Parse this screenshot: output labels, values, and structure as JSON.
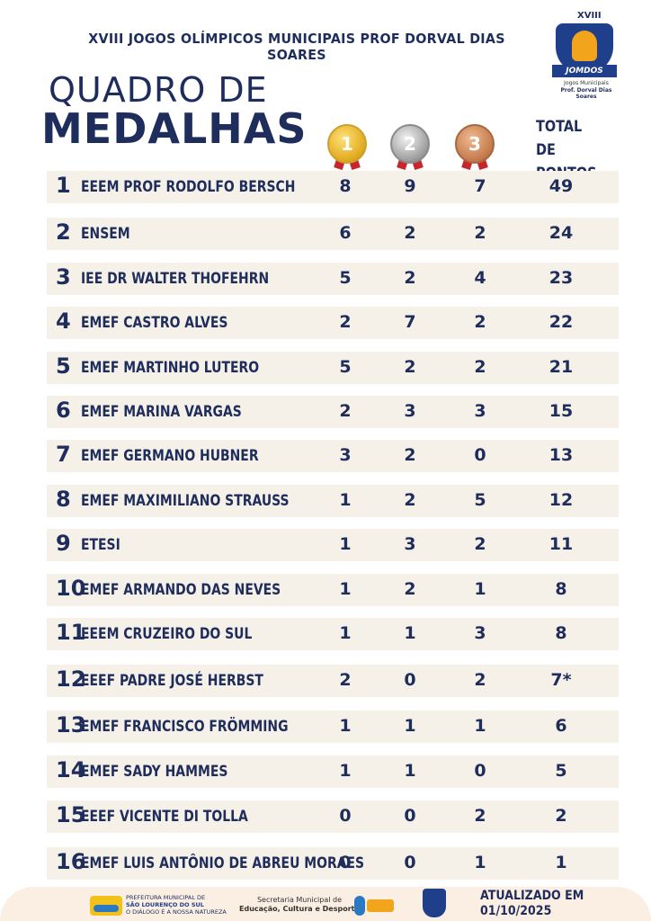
{
  "header": {
    "title": "XVIII JOGOS OLÍMPICOS MUNICIPAIS PROF DORVAL DIAS SOARES",
    "title_line1": "QUADRO DE",
    "title_line2": "MEDALHAS"
  },
  "logo": {
    "year": "XVIII",
    "banner": "JOMDOS",
    "sub1": "Jogos Municipais",
    "sub2": "Prof. Dorval Dias Soares"
  },
  "columns": {
    "gold": "1",
    "silver": "2",
    "bronze": "3",
    "total_line1": "TOTAL DE",
    "total_line2": "PONTOS"
  },
  "rows": [
    {
      "rank": "1",
      "school": "EEEM PROF RODOLFO BERSCH",
      "gold": "8",
      "silver": "9",
      "bronze": "7",
      "total": "49"
    },
    {
      "rank": "2",
      "school": "ENSEM",
      "gold": "6",
      "silver": "2",
      "bronze": "2",
      "total": "24"
    },
    {
      "rank": "3",
      "school": "IEE DR WALTER THOFEHRN",
      "gold": "5",
      "silver": "2",
      "bronze": "4",
      "total": "23"
    },
    {
      "rank": "4",
      "school": "EMEF CASTRO ALVES",
      "gold": "2",
      "silver": "7",
      "bronze": "2",
      "total": "22"
    },
    {
      "rank": "5",
      "school": "EMEF MARTINHO LUTERO",
      "gold": "5",
      "silver": "2",
      "bronze": "2",
      "total": "21"
    },
    {
      "rank": "6",
      "school": "EMEF MARINA VARGAS",
      "gold": "2",
      "silver": "3",
      "bronze": "3",
      "total": "15"
    },
    {
      "rank": "7",
      "school": "EMEF GERMANO HUBNER",
      "gold": "3",
      "silver": "2",
      "bronze": "0",
      "total": "13"
    },
    {
      "rank": "8",
      "school": "EMEF MAXIMILIANO STRAUSS",
      "gold": "1",
      "silver": "2",
      "bronze": "5",
      "total": "12"
    },
    {
      "rank": "9",
      "school": "ETESI",
      "gold": "1",
      "silver": "3",
      "bronze": "2",
      "total": "11"
    },
    {
      "rank": "10",
      "school": "EMEF ARMANDO DAS NEVES",
      "gold": "1",
      "silver": "2",
      "bronze": "1",
      "total": "8"
    },
    {
      "rank": "11",
      "school": "EEEM CRUZEIRO DO SUL",
      "gold": "1",
      "silver": "1",
      "bronze": "3",
      "total": "8"
    },
    {
      "rank": "12",
      "school": "EEEF PADRE JOSÉ HERBST",
      "gold": "2",
      "silver": "0",
      "bronze": "2",
      "total": "7*"
    },
    {
      "rank": "13",
      "school": "EMEF FRANCISCO FRÖMMING",
      "gold": "1",
      "silver": "1",
      "bronze": "1",
      "total": "6"
    },
    {
      "rank": "14",
      "school": "EMEF SADY HAMMES",
      "gold": "1",
      "silver": "1",
      "bronze": "0",
      "total": "5"
    },
    {
      "rank": "15",
      "school": "EEEF VICENTE DI TOLLA",
      "gold": "0",
      "silver": "0",
      "bronze": "2",
      "total": "2"
    },
    {
      "rank": "16",
      "school": "EMEF LUIS ANTÔNIO DE ABREU MORAES",
      "gold": "0",
      "silver": "0",
      "bronze": "1",
      "total": "1"
    }
  ],
  "footer": {
    "pref_line1": "PREFEITURA MUNICIPAL DE",
    "pref_line2": "SÃO LOURENÇO DO SUL",
    "pref_line3": "O DIÁLOGO É A NOSSA NATUREZA",
    "sec_line1": "Secretaria Municipal de",
    "sec_line2": "Educação, Cultura e Desporto",
    "updated_line1": "ATUALIZADO EM",
    "updated_line2": "01/10/2025"
  },
  "colors": {
    "navy": "#1f2d5c",
    "row_bg": "#f5f1e9",
    "footer_bg": "#fbeee2",
    "gold": "#e0a91b",
    "silver": "#9c9c9c",
    "bronze": "#c27a4b",
    "ribbon": "#c8262d"
  }
}
